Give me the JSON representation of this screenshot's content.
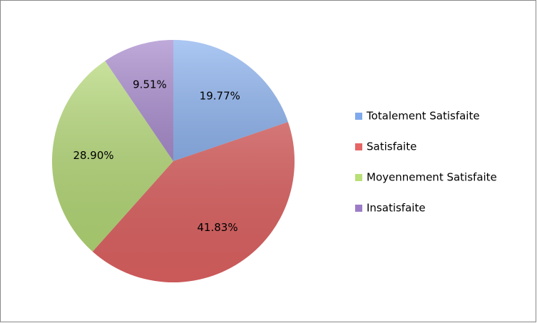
{
  "chart_data": {
    "type": "pie",
    "categories": [
      "Totalement Satisfaite",
      "Satisfaite",
      "Moyennement Satisfaite",
      "Insatisfaite"
    ],
    "values": [
      19.77,
      41.83,
      28.9,
      9.51
    ],
    "value_labels": [
      "19.77%",
      "41.83%",
      "28.90%",
      "9.51%"
    ],
    "colors": [
      "#7fa9ec",
      "#e66565",
      "#b9df78",
      "#9c7cc6"
    ],
    "legend": "right"
  }
}
